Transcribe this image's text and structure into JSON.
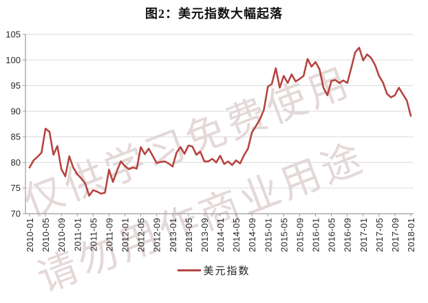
{
  "title": "图2：美元指数大幅起落",
  "watermark": {
    "line1": "仅供学习免费使用",
    "line2": "请勿用作商业用途"
  },
  "legend": {
    "label": "美元指数"
  },
  "colors": {
    "line": "#b5433f",
    "grid": "#d9d9d9",
    "axis": "#9a9a9a",
    "text": "#262626",
    "watermark": "rgba(190,163,163,0.42)"
  },
  "chart_data": {
    "type": "line",
    "title": "图2：美元指数大幅起落",
    "xlabel": "",
    "ylabel": "",
    "ylim": [
      70,
      105
    ],
    "yticks": [
      70,
      75,
      80,
      85,
      90,
      95,
      100,
      105
    ],
    "grid": "horizontal",
    "legend_position": "bottom",
    "xtick_every_n_points": 4,
    "xtick_labels": [
      "2010-01",
      "2010-05",
      "2010-09",
      "2011-01",
      "2011-05",
      "2011-09",
      "2012-01",
      "2012-05",
      "2012-09",
      "2013-01",
      "2013-05",
      "2013-09",
      "2014-01",
      "2014-05",
      "2014-09",
      "2015-01",
      "2015-05",
      "2015-09",
      "2016-01",
      "2016-05",
      "2016-09",
      "2017-01",
      "2017-05",
      "2017-09",
      "2018-01"
    ],
    "series": [
      {
        "name": "美元指数",
        "color": "#b5433f",
        "x": [
          "2010-01",
          "2010-02",
          "2010-03",
          "2010-04",
          "2010-05",
          "2010-06",
          "2010-07",
          "2010-08",
          "2010-09",
          "2010-10",
          "2010-11",
          "2010-12",
          "2011-01",
          "2011-02",
          "2011-03",
          "2011-04",
          "2011-05",
          "2011-06",
          "2011-07",
          "2011-08",
          "2011-09",
          "2011-10",
          "2011-11",
          "2011-12",
          "2012-01",
          "2012-02",
          "2012-03",
          "2012-04",
          "2012-05",
          "2012-06",
          "2012-07",
          "2012-08",
          "2012-09",
          "2012-10",
          "2012-11",
          "2012-12",
          "2013-01",
          "2013-02",
          "2013-03",
          "2013-04",
          "2013-05",
          "2013-06",
          "2013-07",
          "2013-08",
          "2013-09",
          "2013-10",
          "2013-11",
          "2013-12",
          "2014-01",
          "2014-02",
          "2014-03",
          "2014-04",
          "2014-05",
          "2014-06",
          "2014-07",
          "2014-08",
          "2014-09",
          "2014-10",
          "2014-11",
          "2014-12",
          "2015-01",
          "2015-02",
          "2015-03",
          "2015-04",
          "2015-05",
          "2015-06",
          "2015-07",
          "2015-08",
          "2015-09",
          "2015-10",
          "2015-11",
          "2015-12",
          "2016-01",
          "2016-02",
          "2016-03",
          "2016-04",
          "2016-05",
          "2016-06",
          "2016-07",
          "2016-08",
          "2016-09",
          "2016-10",
          "2016-11",
          "2016-12",
          "2017-01",
          "2017-02",
          "2017-03",
          "2017-04",
          "2017-05",
          "2017-06",
          "2017-07",
          "2017-08",
          "2017-09",
          "2017-10",
          "2017-11",
          "2017-12",
          "2018-01"
        ],
        "values": [
          79.0,
          80.4,
          81.1,
          81.9,
          86.6,
          86.0,
          81.5,
          83.2,
          78.7,
          77.3,
          81.2,
          79.0,
          77.7,
          76.9,
          75.9,
          73.5,
          74.6,
          74.3,
          73.9,
          74.1,
          78.6,
          76.2,
          78.4,
          80.2,
          79.3,
          78.7,
          79.0,
          78.8,
          83.0,
          81.6,
          82.7,
          81.3,
          79.9,
          80.1,
          80.2,
          79.8,
          79.2,
          81.9,
          83.0,
          81.7,
          83.3,
          83.1,
          81.5,
          82.1,
          80.2,
          80.2,
          80.7,
          80.0,
          81.3,
          79.7,
          80.2,
          79.5,
          80.4,
          79.8,
          81.4,
          82.7,
          85.9,
          87.1,
          88.4,
          90.3,
          94.8,
          95.3,
          98.4,
          94.6,
          96.9,
          95.5,
          97.2,
          95.8,
          96.3,
          96.9,
          100.2,
          98.7,
          99.6,
          98.2,
          94.6,
          93.1,
          95.9,
          96.1,
          95.5,
          96.0,
          95.5,
          98.4,
          101.5,
          102.4,
          99.9,
          101.1,
          100.4,
          99.0,
          96.9,
          95.6,
          93.4,
          92.7,
          93.1,
          94.6,
          93.3,
          92.1,
          89.1
        ]
      }
    ]
  }
}
